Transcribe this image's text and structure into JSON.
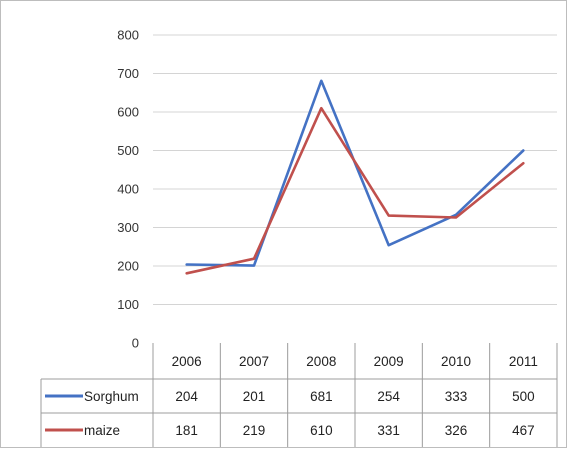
{
  "chart_data": {
    "type": "line",
    "categories": [
      "2006",
      "2007",
      "2008",
      "2009",
      "2010",
      "2011"
    ],
    "ylim": [
      0,
      800
    ],
    "yticks": [
      "0",
      "100",
      "200",
      "300",
      "400",
      "500",
      "600",
      "700",
      "800"
    ],
    "grid": true,
    "legend": "data-table-left",
    "series": [
      {
        "name": "Sorghum",
        "color": "#4472c4",
        "values": [
          204,
          201,
          681,
          254,
          333,
          500
        ]
      },
      {
        "name": "maize",
        "color": "#c0504d",
        "values": [
          181,
          219,
          610,
          331,
          326,
          467
        ]
      }
    ]
  }
}
